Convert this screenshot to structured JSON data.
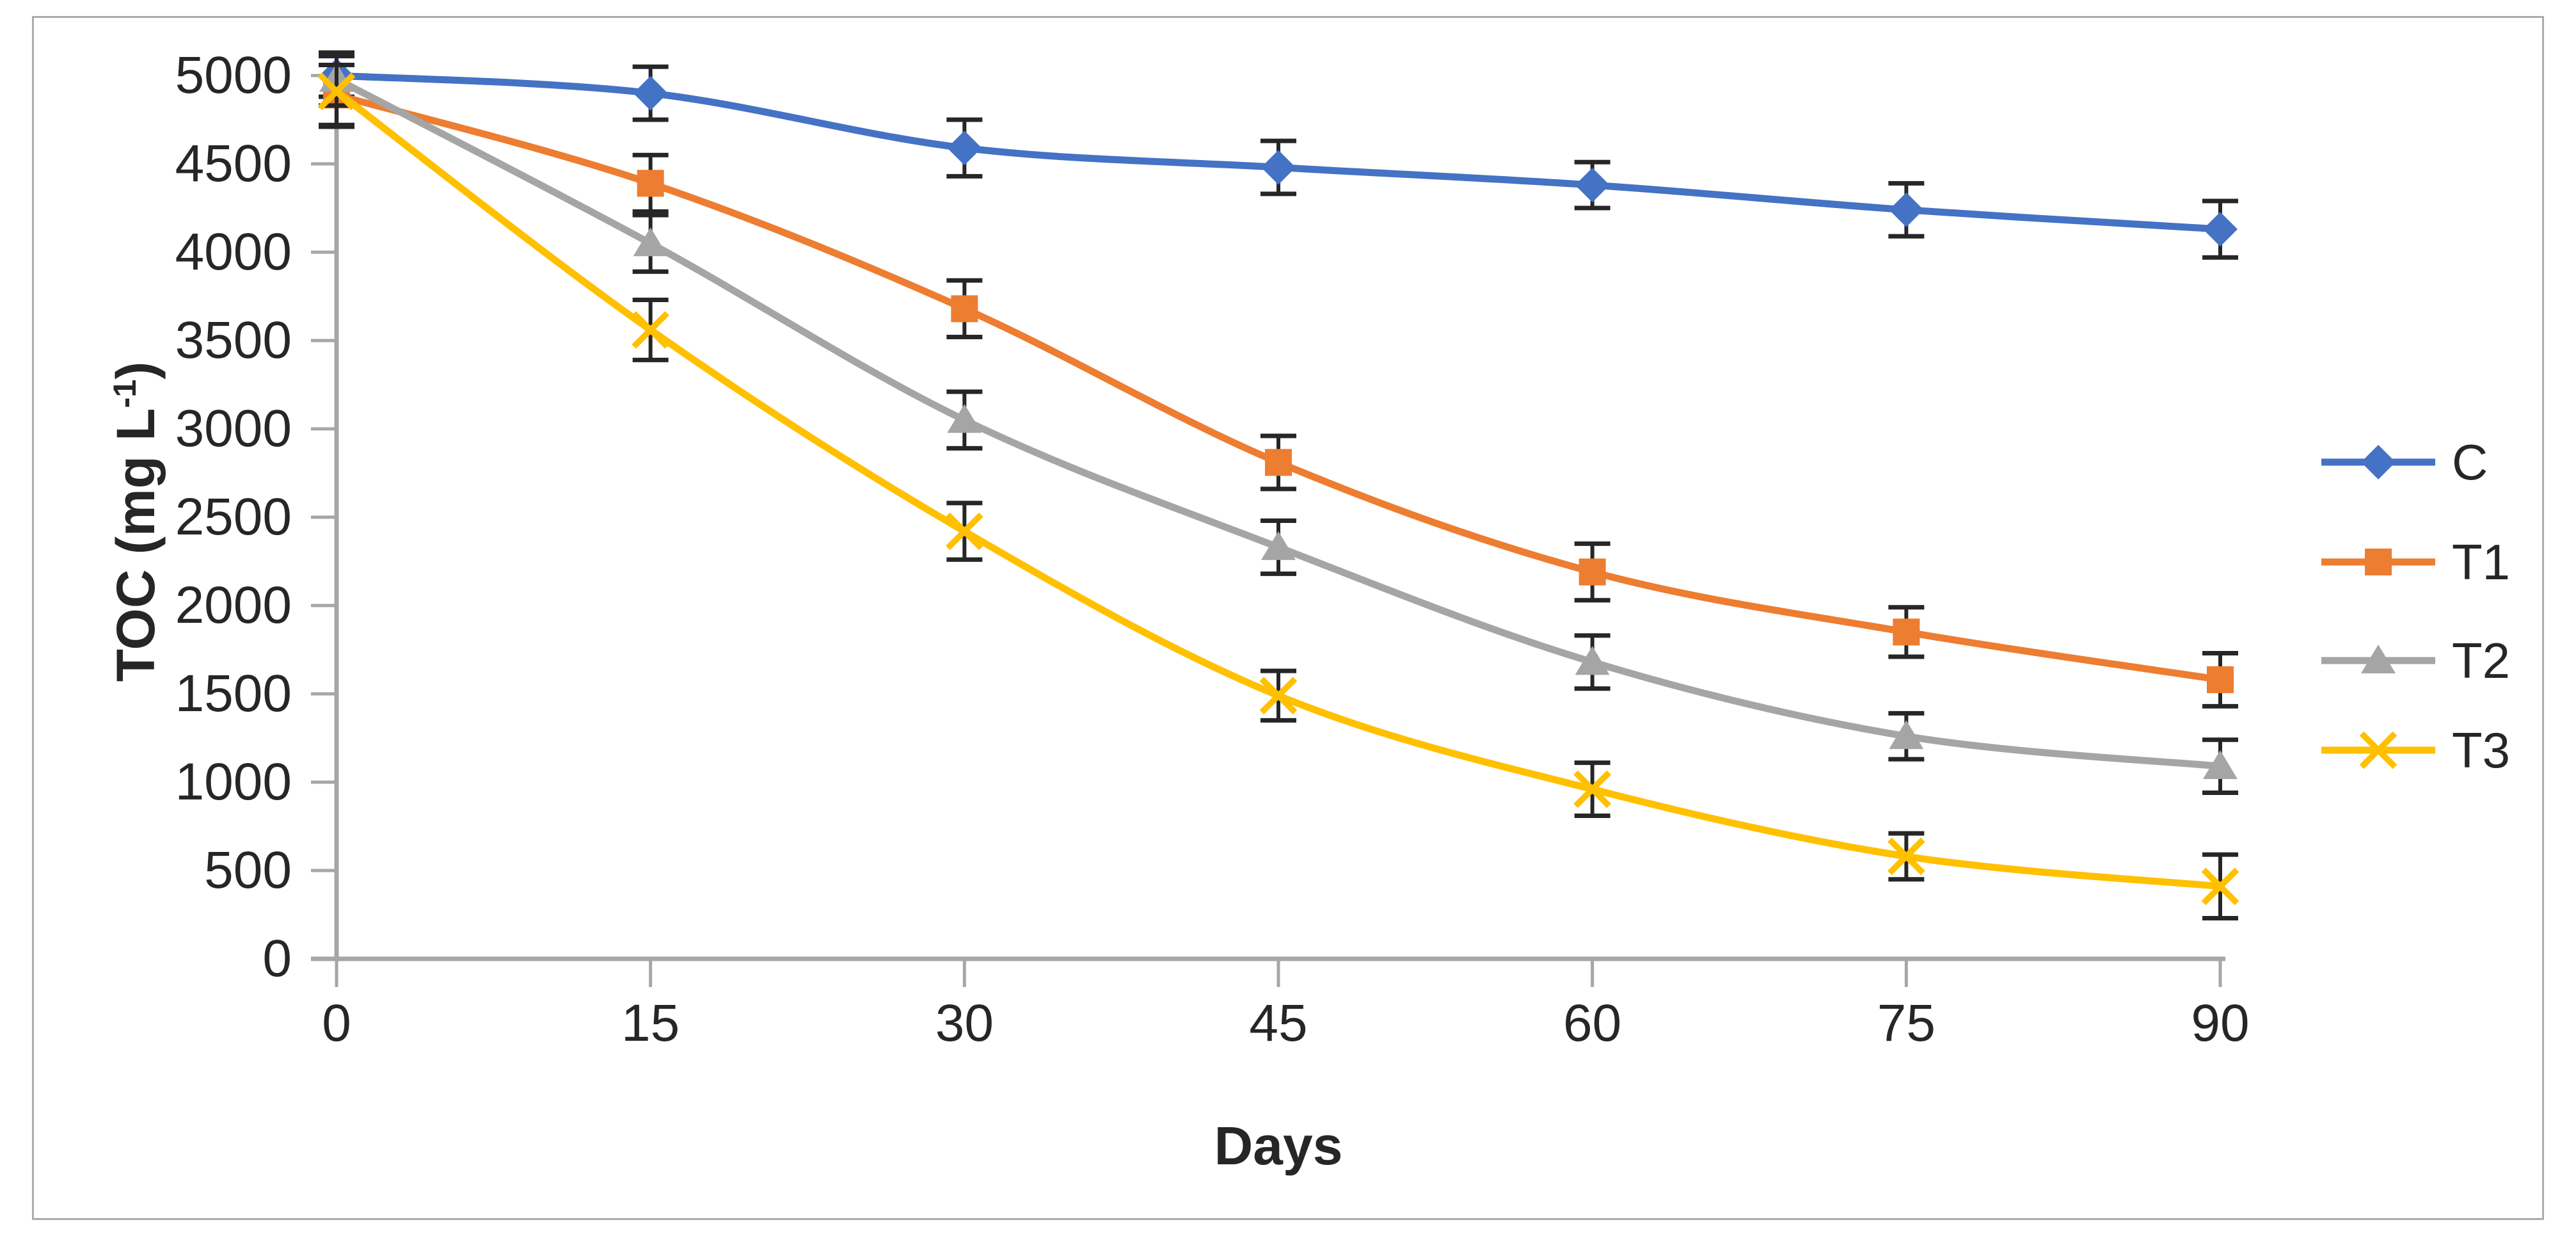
{
  "figure": {
    "background": "#FFFFFF",
    "border_color": "#ABABAB"
  },
  "chart_data": {
    "type": "line",
    "title": "",
    "xlabel": "Days",
    "ylabel": "TOC (mg L-1)",
    "ylabel_parts": {
      "prefix": "TOC (mg L",
      "sup": "-1",
      "suffix": ")"
    },
    "x": [
      0,
      15,
      30,
      45,
      60,
      75,
      90
    ],
    "x_ticks": [
      0,
      15,
      30,
      45,
      60,
      75,
      90
    ],
    "y_ticks": [
      0,
      500,
      1000,
      1500,
      2000,
      2500,
      3000,
      3500,
      4000,
      4500,
      5000
    ],
    "xlim": [
      0,
      90
    ],
    "ylim": [
      0,
      5000
    ],
    "grid": false,
    "legend_position": "right",
    "axis_color": "#A6A6A6",
    "text_color": "#262626",
    "error_bar_color": "#262626",
    "series": [
      {
        "name": "C",
        "color": "#4472C4",
        "marker": "diamond",
        "values": [
          5000,
          4900,
          4590,
          4480,
          4380,
          4240,
          4130
        ],
        "errors": [
          120,
          150,
          160,
          150,
          130,
          150,
          160
        ]
      },
      {
        "name": "T1",
        "color": "#ED7D31",
        "marker": "square",
        "values": [
          4890,
          4390,
          3680,
          2810,
          2190,
          1850,
          1580
        ],
        "errors": [
          170,
          160,
          160,
          150,
          160,
          140,
          150
        ]
      },
      {
        "name": "T2",
        "color": "#A5A5A5",
        "marker": "triangle",
        "values": [
          4980,
          4050,
          3050,
          2330,
          1680,
          1260,
          1090
        ],
        "errors": [
          150,
          160,
          160,
          150,
          150,
          130,
          150
        ]
      },
      {
        "name": "T3",
        "color": "#FFC000",
        "marker": "x",
        "values": [
          4910,
          3560,
          2420,
          1490,
          960,
          580,
          410
        ],
        "errors": [
          200,
          170,
          160,
          140,
          150,
          130,
          180
        ]
      }
    ]
  }
}
